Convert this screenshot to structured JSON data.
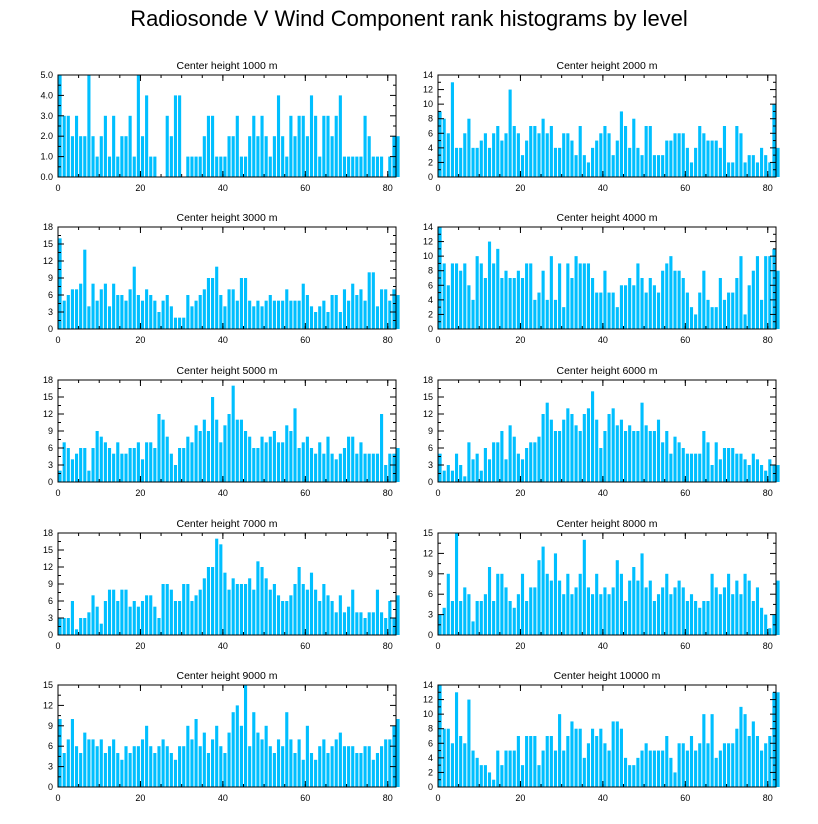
{
  "figure": {
    "title": "Radiosonde V Wind Component rank histograms by level"
  },
  "style": {
    "bar_color": "#00bfff",
    "axis_color": "#000000"
  },
  "chart_data": [
    {
      "type": "bar",
      "title": "Center height 1000 m",
      "xlim": [
        0,
        82
      ],
      "ylim": [
        0,
        5
      ],
      "xticks": [
        0,
        20,
        40,
        60,
        80
      ],
      "yticks": [
        "0.0",
        "1.0",
        "2.0",
        "3.0",
        "4.0",
        "5.0"
      ],
      "ytick_values": [
        0,
        1,
        2,
        3,
        4,
        5
      ],
      "values": [
        5,
        3,
        3,
        2,
        3,
        2,
        2,
        5,
        2,
        1,
        2,
        3,
        1,
        3,
        1,
        2,
        2,
        3,
        1,
        5,
        2,
        4,
        1,
        1,
        0,
        0,
        3,
        2,
        4,
        4,
        0,
        1,
        1,
        1,
        1,
        2,
        3,
        3,
        1,
        1,
        1,
        2,
        2,
        3,
        1,
        1,
        2,
        3,
        2,
        3,
        2,
        1,
        2,
        4,
        2,
        1,
        3,
        2,
        3,
        3,
        2,
        4,
        3,
        1,
        3,
        3,
        2,
        3,
        4,
        1,
        1,
        1,
        1,
        1,
        3,
        2,
        1,
        1,
        1,
        0,
        1,
        2,
        2
      ]
    },
    {
      "type": "bar",
      "title": "Center height 2000 m",
      "xlim": [
        0,
        82
      ],
      "ylim": [
        0,
        14
      ],
      "xticks": [
        0,
        20,
        40,
        60,
        80
      ],
      "yticks": [
        "0",
        "2",
        "4",
        "6",
        "8",
        "10",
        "12",
        "14"
      ],
      "ytick_values": [
        0,
        2,
        4,
        6,
        8,
        10,
        12,
        14
      ],
      "values": [
        9,
        8,
        6,
        13,
        4,
        4,
        6,
        8,
        4,
        4,
        5,
        6,
        4,
        6,
        7,
        5,
        6,
        12,
        7,
        6,
        3,
        5,
        7,
        7,
        6,
        8,
        6,
        7,
        4,
        4,
        6,
        6,
        5,
        3,
        7,
        3,
        2,
        4,
        5,
        6,
        7,
        6,
        3,
        5,
        9,
        7,
        4,
        8,
        4,
        3,
        7,
        7,
        3,
        3,
        3,
        5,
        5,
        6,
        6,
        6,
        4,
        2,
        4,
        7,
        6,
        5,
        5,
        5,
        4,
        7,
        2,
        2,
        7,
        6,
        2,
        3,
        3,
        2,
        4,
        3,
        2,
        10,
        4
      ]
    },
    {
      "type": "bar",
      "title": "Center height 3000 m",
      "xlim": [
        0,
        82
      ],
      "ylim": [
        0,
        18
      ],
      "xticks": [
        0,
        20,
        40,
        60,
        80
      ],
      "yticks": [
        "0",
        "3",
        "6",
        "9",
        "12",
        "15",
        "18"
      ],
      "ytick_values": [
        0,
        3,
        6,
        9,
        12,
        15,
        18
      ],
      "values": [
        16,
        5,
        6,
        7,
        7,
        8,
        14,
        4,
        8,
        5,
        7,
        8,
        4,
        8,
        6,
        6,
        5,
        7,
        11,
        6,
        5,
        7,
        6,
        5,
        3,
        5,
        6,
        4,
        2,
        2,
        2,
        6,
        4,
        5,
        6,
        7,
        9,
        9,
        11,
        6,
        4,
        7,
        7,
        5,
        9,
        9,
        5,
        4,
        5,
        4,
        5,
        6,
        5,
        5,
        5,
        7,
        5,
        5,
        5,
        8,
        6,
        4,
        3,
        4,
        5,
        3,
        6,
        6,
        3,
        7,
        5,
        8,
        6,
        7,
        5,
        10,
        10,
        4,
        7,
        7,
        5,
        7,
        6
      ]
    },
    {
      "type": "bar",
      "title": "Center height 4000 m",
      "xlim": [
        0,
        82
      ],
      "ylim": [
        0,
        14
      ],
      "xticks": [
        0,
        20,
        40,
        60,
        80
      ],
      "yticks": [
        "0",
        "2",
        "4",
        "6",
        "8",
        "10",
        "12",
        "14"
      ],
      "ytick_values": [
        0,
        2,
        4,
        6,
        8,
        10,
        12,
        14
      ],
      "values": [
        14,
        9,
        6,
        9,
        9,
        8,
        9,
        6,
        4,
        10,
        9,
        7,
        12,
        9,
        11,
        7,
        8,
        7,
        7,
        8,
        7,
        9,
        9,
        4,
        5,
        8,
        4,
        10,
        4,
        9,
        3,
        9,
        7,
        10,
        9,
        9,
        9,
        7,
        5,
        5,
        8,
        5,
        5,
        3,
        6,
        6,
        7,
        6,
        9,
        7,
        5,
        7,
        6,
        5,
        8,
        9,
        10,
        8,
        8,
        7,
        5,
        3,
        2,
        5,
        8,
        4,
        3,
        3,
        7,
        4,
        5,
        5,
        7,
        10,
        2,
        6,
        8,
        10,
        4,
        10,
        10,
        11,
        8
      ]
    },
    {
      "type": "bar",
      "title": "Center height 5000 m",
      "xlim": [
        0,
        82
      ],
      "ylim": [
        0,
        18
      ],
      "xticks": [
        0,
        20,
        40,
        60,
        80
      ],
      "yticks": [
        "0",
        "3",
        "6",
        "9",
        "12",
        "15",
        "18"
      ],
      "ytick_values": [
        0,
        3,
        6,
        9,
        12,
        15,
        18
      ],
      "values": [
        2,
        7,
        6,
        4,
        5,
        6,
        6,
        2,
        6,
        9,
        8,
        7,
        6,
        5,
        7,
        5,
        5,
        6,
        6,
        7,
        4,
        7,
        7,
        6,
        12,
        11,
        8,
        5,
        3,
        6,
        6,
        8,
        7,
        10,
        9,
        11,
        9,
        15,
        11,
        7,
        10,
        12,
        17,
        11,
        11,
        9,
        8,
        6,
        6,
        8,
        7,
        8,
        9,
        7,
        7,
        10,
        9,
        13,
        6,
        7,
        8,
        6,
        5,
        7,
        5,
        8,
        5,
        4,
        5,
        6,
        8,
        8,
        5,
        7,
        5,
        5,
        5,
        5,
        12,
        3,
        5,
        5,
        6
      ]
    },
    {
      "type": "bar",
      "title": "Center height 6000 m",
      "xlim": [
        0,
        82
      ],
      "ylim": [
        0,
        18
      ],
      "xticks": [
        0,
        20,
        40,
        60,
        80
      ],
      "yticks": [
        "0",
        "3",
        "6",
        "9",
        "12",
        "15",
        "18"
      ],
      "ytick_values": [
        0,
        3,
        6,
        9,
        12,
        15,
        18
      ],
      "values": [
        5,
        2,
        3,
        2,
        5,
        3,
        1,
        7,
        4,
        5,
        2,
        6,
        4,
        7,
        7,
        9,
        4,
        10,
        8,
        5,
        4,
        6,
        7,
        7,
        8,
        12,
        14,
        11,
        9,
        9,
        11,
        13,
        12,
        10,
        9,
        12,
        13,
        16,
        11,
        6,
        9,
        12,
        13,
        10,
        11,
        9,
        10,
        9,
        9,
        14,
        10,
        9,
        9,
        11,
        7,
        9,
        5,
        8,
        7,
        6,
        5,
        5,
        5,
        5,
        9,
        7,
        3,
        7,
        4,
        6,
        6,
        6,
        5,
        5,
        4,
        3,
        5,
        4,
        3,
        2,
        4,
        3,
        3
      ]
    },
    {
      "type": "bar",
      "title": "Center height 7000 m",
      "xlim": [
        0,
        82
      ],
      "ylim": [
        0,
        18
      ],
      "xticks": [
        0,
        20,
        40,
        60,
        80
      ],
      "yticks": [
        "0",
        "3",
        "6",
        "9",
        "12",
        "15",
        "18"
      ],
      "ytick_values": [
        0,
        3,
        6,
        9,
        12,
        15,
        18
      ],
      "values": [
        3,
        3,
        3,
        6,
        1,
        3,
        3,
        4,
        7,
        5,
        2,
        6,
        8,
        8,
        6,
        8,
        8,
        5,
        6,
        5,
        6,
        7,
        7,
        5,
        3,
        9,
        9,
        8,
        6,
        6,
        9,
        9,
        6,
        7,
        8,
        10,
        12,
        12,
        17,
        16,
        11,
        8,
        10,
        9,
        9,
        9,
        10,
        8,
        13,
        12,
        10,
        8,
        9,
        7,
        6,
        6,
        7,
        9,
        12,
        9,
        8,
        11,
        8,
        6,
        9,
        7,
        6,
        4,
        7,
        4,
        5,
        8,
        4,
        4,
        3,
        4,
        4,
        8,
        4,
        3,
        6,
        3,
        7
      ]
    },
    {
      "type": "bar",
      "title": "Center height 8000 m",
      "xlim": [
        0,
        82
      ],
      "ylim": [
        0,
        15
      ],
      "xticks": [
        0,
        20,
        40,
        60,
        80
      ],
      "yticks": [
        "0",
        "3",
        "6",
        "9",
        "12",
        "15"
      ],
      "ytick_values": [
        0,
        3,
        6,
        9,
        12,
        15
      ],
      "values": [
        3,
        4,
        9,
        5,
        15,
        5,
        7,
        6,
        2,
        5,
        5,
        6,
        10,
        5,
        9,
        9,
        7,
        5,
        4,
        6,
        9,
        5,
        7,
        7,
        11,
        13,
        9,
        8,
        12,
        8,
        6,
        9,
        6,
        7,
        9,
        14,
        7,
        6,
        9,
        6,
        7,
        6,
        7,
        11,
        9,
        5,
        8,
        10,
        8,
        12,
        7,
        8,
        5,
        6,
        7,
        9,
        6,
        7,
        8,
        7,
        5,
        6,
        5,
        4,
        5,
        5,
        9,
        7,
        6,
        7,
        9,
        6,
        8,
        6,
        9,
        8,
        5,
        7,
        4,
        3,
        1,
        3,
        8
      ]
    },
    {
      "type": "bar",
      "title": "Center height 9000 m",
      "xlim": [
        0,
        82
      ],
      "ylim": [
        0,
        15
      ],
      "xticks": [
        0,
        20,
        40,
        60,
        80
      ],
      "yticks": [
        "0",
        "3",
        "6",
        "9",
        "12",
        "15"
      ],
      "ytick_values": [
        0,
        3,
        6,
        9,
        12,
        15
      ],
      "values": [
        10,
        5,
        7,
        10,
        6,
        5,
        8,
        7,
        7,
        6,
        7,
        5,
        6,
        7,
        5,
        4,
        6,
        5,
        6,
        6,
        7,
        9,
        6,
        5,
        6,
        7,
        6,
        5,
        4,
        6,
        6,
        9,
        7,
        10,
        6,
        8,
        5,
        7,
        9,
        6,
        5,
        8,
        11,
        12,
        9,
        15,
        6,
        11,
        8,
        7,
        9,
        6,
        5,
        7,
        6,
        11,
        7,
        5,
        7,
        4,
        9,
        5,
        4,
        6,
        7,
        5,
        6,
        7,
        8,
        6,
        6,
        6,
        5,
        5,
        6,
        6,
        4,
        5,
        6,
        7,
        7,
        9,
        10
      ]
    },
    {
      "type": "bar",
      "title": "Center height 10000 m",
      "xlim": [
        0,
        82
      ],
      "ylim": [
        0,
        14
      ],
      "xticks": [
        0,
        20,
        40,
        60,
        80
      ],
      "yticks": [
        "0",
        "2",
        "4",
        "6",
        "8",
        "10",
        "12",
        "14"
      ],
      "ytick_values": [
        0,
        2,
        4,
        6,
        8,
        10,
        12,
        14
      ],
      "values": [
        14,
        8,
        8,
        6,
        13,
        7,
        6,
        12,
        5,
        4,
        3,
        3,
        2,
        1,
        5,
        3,
        5,
        5,
        5,
        7,
        3,
        7,
        7,
        7,
        3,
        5,
        7,
        7,
        5,
        10,
        5,
        7,
        9,
        8,
        8,
        4,
        6,
        8,
        7,
        8,
        6,
        5,
        9,
        9,
        8,
        4,
        3,
        3,
        4,
        5,
        6,
        5,
        5,
        5,
        5,
        7,
        4,
        2,
        6,
        6,
        5,
        7,
        5,
        6,
        10,
        6,
        10,
        4,
        5,
        6,
        6,
        6,
        8,
        11,
        10,
        7,
        9,
        7,
        5,
        6,
        7,
        13,
        13
      ]
    }
  ]
}
